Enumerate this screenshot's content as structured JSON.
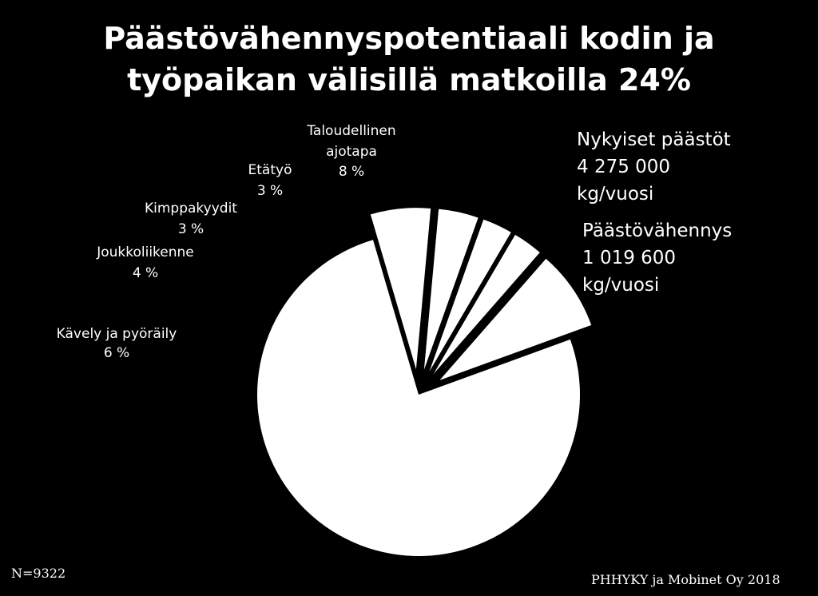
{
  "title_line1": "Päästövähennyspotentiaali kodin ja",
  "title_line2": "työpaikan välisillä matkoilla 24%",
  "info": {
    "current_label": "Nykyiset päästöt",
    "current_value": "4 275 000",
    "current_unit": "kg/vuosi",
    "reduction_label": "Päästövähennys",
    "reduction_value": "1 019 600",
    "reduction_unit": "kg/vuosi"
  },
  "footer": {
    "n": "N=9322",
    "source": "PHHYKY ja Mobinet Oy 2018"
  },
  "colors": {
    "background": "#000000",
    "slice": "#ffffff",
    "text": "#ffffff"
  },
  "chart_data": {
    "type": "pie",
    "title": "Päästövähennyspotentiaali kodin ja työpaikan välisillä matkoilla 24%",
    "slices": [
      {
        "name": "Kävely ja pyöräily",
        "value": 6,
        "label": "6 %"
      },
      {
        "name": "Joukkoliikenne",
        "value": 4,
        "label": "4 %"
      },
      {
        "name": "Kimppakyydit",
        "value": 3,
        "label": "3 %"
      },
      {
        "name": "Etätyö",
        "value": 3,
        "label": "3 %"
      },
      {
        "name": "Taloudellinen ajotapa",
        "value": 8,
        "label": "8 %"
      },
      {
        "name": "",
        "value": 76,
        "label": ""
      }
    ],
    "exploded": [
      true,
      true,
      true,
      true,
      true,
      false
    ]
  }
}
